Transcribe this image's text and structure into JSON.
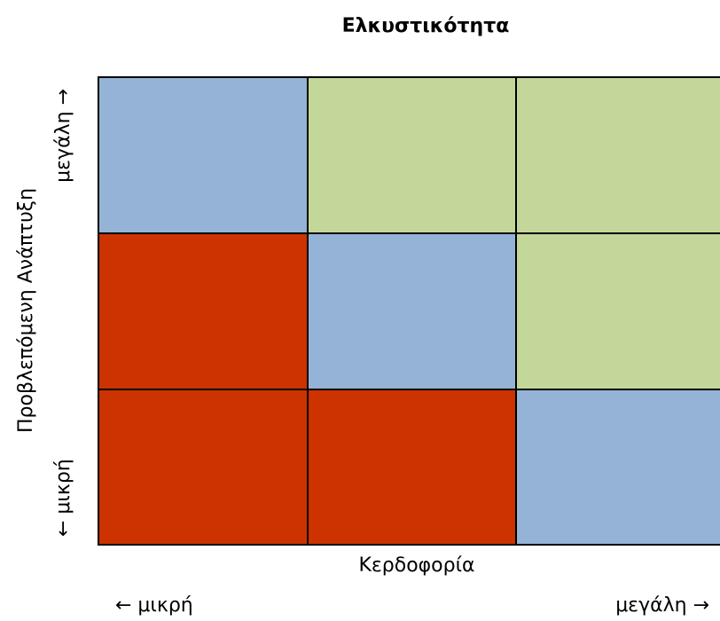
{
  "title": "Ελκυστικότητα",
  "x_axis": {
    "label": "Κερδοφορία",
    "low": "← μικρή",
    "high": "μεγάλη →"
  },
  "y_axis": {
    "label": "Προβλεπόμενη Ανάπτυξη",
    "low": "← μικρή",
    "high": "μεγάλη →"
  },
  "cells": [
    [
      "#95b3d7",
      "#c4d79b",
      "#c4d79b"
    ],
    [
      "#cc3300",
      "#95b3d7",
      "#c4d79b"
    ],
    [
      "#cc3300",
      "#cc3300",
      "#95b3d7"
    ]
  ]
}
